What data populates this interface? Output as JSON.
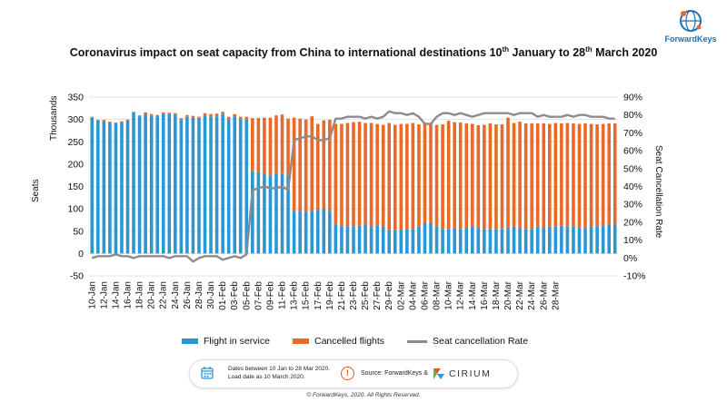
{
  "title_main": "Coronavirus impact on seat capacity from China to international destinations 10",
  "title_sup1": "th",
  "title_mid": " January to 28",
  "title_sup2": "th",
  "title_end": " March 2020",
  "logo_text": "ForwardKeys",
  "legend": {
    "flight": "Flight in service",
    "cancelled": "Cancelled flights",
    "rate": "Seat cancellation Rate"
  },
  "info": {
    "note": "Dates between 10 Jan to 28 Mar 2020. Load date as 10 March 2020.",
    "source": "Source: ForwardKeys &",
    "cirium": "CIRIUM"
  },
  "copyright": "© ForwardKeys, 2020. All Rights Reserved.",
  "colors": {
    "flight": "#2a97d4",
    "cancelled": "#e96a28",
    "rate": "#8c8c8c"
  },
  "chart_data": {
    "type": "bar",
    "stacked": true,
    "ylabel": "Seats",
    "ylabel_unit": "Thousands",
    "y2label": "Seat Cancellation Rate",
    "ylim": [
      -50,
      350
    ],
    "yticks": [
      -50,
      0,
      50,
      100,
      150,
      200,
      250,
      300,
      350
    ],
    "y2lim": [
      -10,
      90
    ],
    "y2ticks": [
      "-10%",
      "0%",
      "10%",
      "20%",
      "30%",
      "40%",
      "50%",
      "60%",
      "70%",
      "80%",
      "90%"
    ],
    "grid": true,
    "legend_position": "bottom",
    "x_tick_labels": [
      "10-Jan",
      "12-Jan",
      "14-Jan",
      "16-Jan",
      "18-Jan",
      "20-Jan",
      "22-Jan",
      "24-Jan",
      "26-Jan",
      "28-Jan",
      "30-Jan",
      "01-Feb",
      "03-Feb",
      "05-Feb",
      "07-Feb",
      "09-Feb",
      "11-Feb",
      "13-Feb",
      "15-Feb",
      "17-Feb",
      "19-Feb",
      "21-Feb",
      "23-Feb",
      "25-Feb",
      "27-Feb",
      "29-Feb",
      "02-Mar",
      "04-Mar",
      "06-Mar",
      "08-Mar",
      "10-Mar",
      "12-Mar",
      "14-Mar",
      "16-Mar",
      "18-Mar",
      "20-Mar",
      "22-Mar",
      "24-Mar",
      "26-Mar",
      "28-Mar"
    ],
    "start_label": "10-Jan",
    "series": [
      {
        "name": "Flight in service",
        "values": [
          305,
          298,
          297,
          293,
          291,
          293,
          298,
          316,
          307,
          313,
          309,
          307,
          313,
          313,
          311,
          299,
          306,
          304,
          302,
          309,
          306,
          307,
          312,
          301,
          307,
          300,
          300,
          184,
          182,
          180,
          175,
          178,
          178,
          175,
          95,
          95,
          93,
          95,
          97,
          101,
          95,
          65,
          60,
          60,
          61,
          62,
          65,
          59,
          63,
          60,
          52,
          52,
          53,
          55,
          55,
          60,
          70,
          70,
          60,
          55,
          55,
          58,
          55,
          58,
          60,
          58,
          55,
          55,
          55,
          55,
          58,
          60,
          58,
          55,
          55,
          60,
          58,
          60,
          60,
          62,
          60,
          60,
          58,
          58,
          60,
          60,
          62,
          65,
          65
        ]
      },
      {
        "name": "Cancelled flights",
        "values": [
          1,
          1,
          2,
          2,
          2,
          3,
          2,
          1,
          2,
          3,
          3,
          3,
          3,
          2,
          3,
          4,
          4,
          4,
          4,
          5,
          6,
          6,
          5,
          5,
          5,
          6,
          6,
          119,
          121,
          124,
          129,
          131,
          133,
          127,
          209,
          207,
          207,
          212,
          193,
          197,
          204,
          225,
          230,
          232,
          233,
          233,
          227,
          233,
          227,
          228,
          240,
          236,
          237,
          235,
          237,
          229,
          223,
          222,
          228,
          234,
          242,
          236,
          238,
          233,
          230,
          229,
          233,
          236,
          234,
          234,
          246,
          232,
          237,
          236,
          236,
          231,
          233,
          230,
          232,
          229,
          232,
          231,
          232,
          233,
          230,
          229,
          228,
          226,
          226
        ]
      },
      {
        "name": "Seat cancellation Rate",
        "values": [
          0,
          1,
          1,
          1,
          2,
          1,
          1,
          0,
          1,
          1,
          1,
          1,
          1,
          0,
          1,
          1,
          1,
          -2,
          0,
          1,
          1,
          1,
          -1,
          0,
          1,
          0,
          2,
          38,
          39,
          40,
          39,
          39,
          40,
          38,
          66,
          67,
          68,
          68,
          66,
          66,
          67,
          78,
          78,
          79,
          79,
          79,
          78,
          79,
          78,
          79,
          82,
          81,
          81,
          80,
          81,
          79,
          75,
          75,
          79,
          81,
          81,
          80,
          81,
          80,
          79,
          80,
          81,
          81,
          81,
          81,
          81,
          80,
          81,
          81,
          81,
          79,
          80,
          79,
          79,
          79,
          80,
          79,
          80,
          80,
          79,
          79,
          79,
          78,
          78
        ]
      }
    ]
  }
}
